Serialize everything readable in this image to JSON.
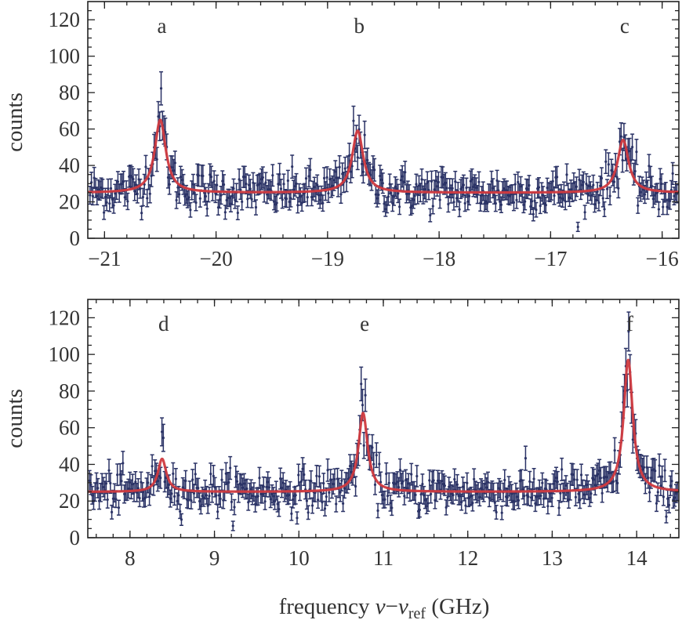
{
  "xlabel": {
    "main": "frequency ",
    "nu": "ν",
    "minus": "−",
    "nu2": "ν",
    "sub": "ref",
    "unit": " (GHz)"
  },
  "colors": {
    "data": "#2b3366",
    "fit": "#d03a3f",
    "frame": "#222222",
    "text": "#333333"
  },
  "chart_data": [
    {
      "type": "scatter",
      "ylabel": "counts",
      "xlim": [
        -21.15,
        -15.85
      ],
      "ylim": [
        0,
        130
      ],
      "xticks": [
        -21,
        -20,
        -19,
        -18,
        -17,
        -16
      ],
      "xtick_labels": [
        "−21",
        "−20",
        "−19",
        "−18",
        "−17",
        "−16"
      ],
      "yticks": [
        0,
        20,
        40,
        60,
        80,
        100,
        120
      ],
      "ytick_labels": [
        "0",
        "20",
        "40",
        "60",
        "80",
        "100",
        "120"
      ],
      "baseline": 25,
      "noise_sd": 6,
      "point_step": 0.0125,
      "peaks": [
        {
          "label": "a",
          "x": -20.5,
          "height": 40,
          "width": 0.06
        },
        {
          "label": "b",
          "x": -18.73,
          "height": 34,
          "width": 0.06
        },
        {
          "label": "c",
          "x": -16.35,
          "height": 29,
          "width": 0.06
        }
      ],
      "series": [
        {
          "name": "",
          "kind": "data-with-errorbars"
        },
        {
          "name": "",
          "kind": "lorentzian-fit"
        }
      ]
    },
    {
      "type": "scatter",
      "ylabel": "counts",
      "xlim": [
        7.5,
        14.5
      ],
      "ylim": [
        0,
        130
      ],
      "xticks": [
        8,
        9,
        10,
        11,
        12,
        13,
        14
      ],
      "xtick_labels": [
        "8",
        "9",
        "10",
        "11",
        "12",
        "13",
        "14"
      ],
      "yticks": [
        0,
        20,
        40,
        60,
        80,
        100,
        120
      ],
      "ytick_labels": [
        "0",
        "20",
        "40",
        "60",
        "80",
        "100",
        "120"
      ],
      "baseline": 25,
      "noise_sd": 6,
      "point_step": 0.0165,
      "peaks": [
        {
          "label": "d",
          "x": 8.38,
          "height": 18,
          "width": 0.06
        },
        {
          "label": "e",
          "x": 10.76,
          "height": 43,
          "width": 0.065
        },
        {
          "label": "f",
          "x": 13.9,
          "height": 72,
          "width": 0.065
        }
      ],
      "series": [
        {
          "name": "",
          "kind": "data-with-errorbars"
        },
        {
          "name": "",
          "kind": "lorentzian-fit"
        }
      ]
    }
  ]
}
